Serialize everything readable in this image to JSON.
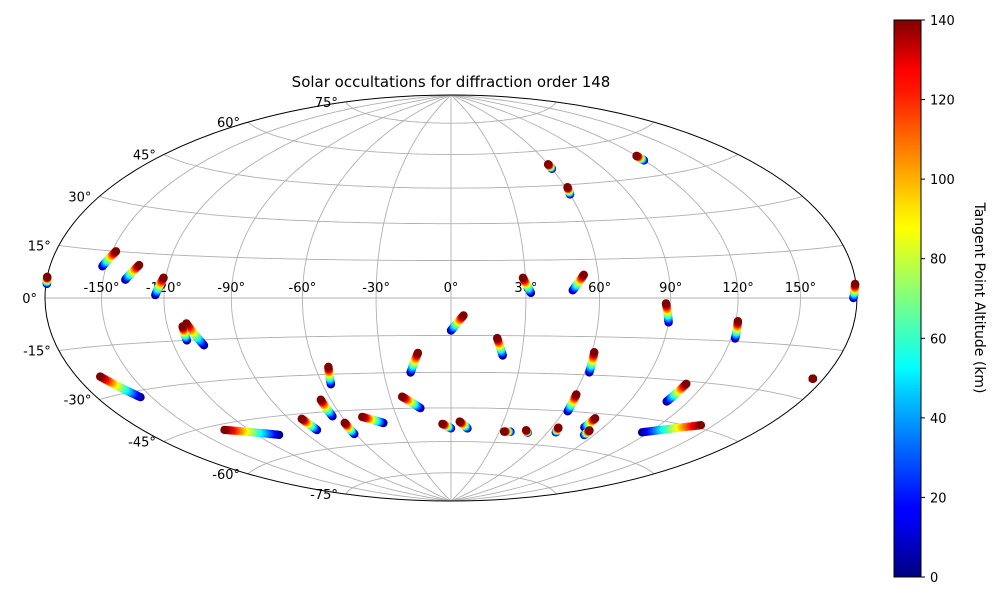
{
  "chart_data": {
    "type": "scatter",
    "projection": "aitoff-hammer",
    "title": "Solar occultations for diffraction order 148",
    "colorbar": {
      "label": "Tangent Point Altitude (km)",
      "min": 0,
      "max": 140,
      "ticks": [
        "0",
        "20",
        "40",
        "60",
        "80",
        "100",
        "120",
        "140"
      ],
      "colormap": "jet"
    },
    "longitude_ticks": [
      "-150°",
      "-120°",
      "-90°",
      "-60°",
      "-30°",
      "0°",
      "30°",
      "60°",
      "90°",
      "120°",
      "150°"
    ],
    "latitude_ticks": [
      "-75°",
      "-60°",
      "-45°",
      "-30°",
      "-15°",
      "0°",
      "15°",
      "30°",
      "45°",
      "60°",
      "75°"
    ],
    "grid": true,
    "altitude_range_km": [
      0,
      140
    ],
    "tracks": [
      {
        "start": [
          -179.5,
          4
        ],
        "end": [
          -180,
          6
        ],
        "alt_start": 0,
        "alt_end": 140
      },
      {
        "start": [
          -152,
          10
        ],
        "end": [
          -148,
          15
        ],
        "alt_start": 0,
        "alt_end": 140
      },
      {
        "start": [
          -139,
          6
        ],
        "end": [
          -134,
          11
        ],
        "alt_start": 0,
        "alt_end": 140
      },
      {
        "start": [
          -124,
          1
        ],
        "end": [
          -121,
          7
        ],
        "alt_start": 0,
        "alt_end": 140
      },
      {
        "start": [
          -106,
          -17
        ],
        "end": [
          -111,
          -9
        ],
        "alt_start": 0,
        "alt_end": 140
      },
      {
        "start": [
          -113,
          -15
        ],
        "end": [
          -113,
          -10
        ],
        "alt_start": 0,
        "alt_end": 140
      },
      {
        "start": [
          -156,
          -32
        ],
        "end": [
          -167,
          -24
        ],
        "alt_start": 0,
        "alt_end": 140
      },
      {
        "start": [
          -107,
          -52
        ],
        "end": [
          -134,
          -47
        ],
        "alt_start": 0,
        "alt_end": 140
      },
      {
        "start": [
          -81,
          -52
        ],
        "end": [
          -83,
          -47
        ],
        "alt_start": 0,
        "alt_end": 140
      },
      {
        "start": [
          -65,
          -47
        ],
        "end": [
          -65,
          -40
        ],
        "alt_start": 0,
        "alt_end": 140
      },
      {
        "start": [
          -61,
          -55
        ],
        "end": [
          -61,
          -50
        ],
        "alt_start": 0,
        "alt_end": 140
      },
      {
        "start": [
          -56,
          -34
        ],
        "end": [
          -54,
          -27
        ],
        "alt_start": 0,
        "alt_end": 140
      },
      {
        "start": [
          -39,
          -51
        ],
        "end": [
          -49,
          -48
        ],
        "alt_start": 0,
        "alt_end": 140
      },
      {
        "start": [
          -16,
          -45
        ],
        "end": [
          -24,
          -40
        ],
        "alt_start": 0,
        "alt_end": 140
      },
      {
        "start": [
          -18,
          -30
        ],
        "end": [
          -14,
          -22
        ],
        "alt_start": 0,
        "alt_end": 140
      },
      {
        "start": [
          0,
          -13
        ],
        "end": [
          5,
          -7
        ],
        "alt_start": 0,
        "alt_end": 140
      },
      {
        "start": [
          0,
          -54
        ],
        "end": [
          -5,
          -52
        ],
        "alt_start": 0,
        "alt_end": 140
      },
      {
        "start": [
          10,
          -54
        ],
        "end": [
          5,
          -51
        ],
        "alt_start": 0,
        "alt_end": 140
      },
      {
        "start": [
          22,
          -23
        ],
        "end": [
          19,
          -16
        ],
        "alt_start": 0,
        "alt_end": 140
      },
      {
        "start": [
          32,
          2
        ],
        "end": [
          29,
          8
        ],
        "alt_start": 0,
        "alt_end": 140
      },
      {
        "start": [
          49,
          3
        ],
        "end": [
          54,
          9
        ],
        "alt_start": 0,
        "alt_end": 140
      },
      {
        "start": [
          37,
          -55
        ],
        "end": [
          33,
          -55
        ],
        "alt_start": 0,
        "alt_end": 140
      },
      {
        "start": [
          48,
          -55
        ],
        "end": [
          46,
          -54
        ],
        "alt_start": 0,
        "alt_end": 140
      },
      {
        "start": [
          62,
          -29
        ],
        "end": [
          61,
          -21
        ],
        "alt_start": 0,
        "alt_end": 140
      },
      {
        "start": [
          62,
          -45
        ],
        "end": [
          61,
          -38
        ],
        "alt_start": 0,
        "alt_end": 140
      },
      {
        "start": [
          65,
          -54
        ],
        "end": [
          64,
          -52
        ],
        "alt_start": 0,
        "alt_end": 140
      },
      {
        "start": [
          79,
          -51
        ],
        "end": [
          80,
          -47
        ],
        "alt_start": 0,
        "alt_end": 140
      },
      {
        "start": [
          84,
          -54
        ],
        "end": [
          84,
          -52
        ],
        "alt_start": 0,
        "alt_end": 140
      },
      {
        "start": [
          90,
          -9
        ],
        "end": [
          88,
          -2
        ],
        "alt_start": 0,
        "alt_end": 140
      },
      {
        "start": [
          109,
          -38
        ],
        "end": [
          111,
          -31
        ],
        "alt_start": 0,
        "alt_end": 140
      },
      {
        "start": [
          122,
          -14
        ],
        "end": [
          121,
          -8
        ],
        "alt_start": 0,
        "alt_end": 140
      },
      {
        "start": [
          116,
          -50
        ],
        "end": [
          143,
          -44
        ],
        "alt_start": 0,
        "alt_end": 140
      },
      {
        "start": [
          60,
          41
        ],
        "end": [
          61,
          44
        ],
        "alt_start": 0,
        "alt_end": 140
      },
      {
        "start": [
          120,
          51
        ],
        "end": [
          120,
          53
        ],
        "alt_start": 0,
        "alt_end": 140
      },
      {
        "start": [
          178,
          0
        ],
        "end": [
          179.5,
          4
        ],
        "alt_start": 0,
        "alt_end": 140
      },
      {
        "start": [
          174,
          -24
        ],
        "end": [
          174,
          -24
        ],
        "alt_start": 140,
        "alt_end": 140
      },
      {
        "start": [
          60,
          52
        ],
        "end": [
          60,
          54
        ],
        "alt_start": 0,
        "alt_end": 140
      }
    ]
  }
}
